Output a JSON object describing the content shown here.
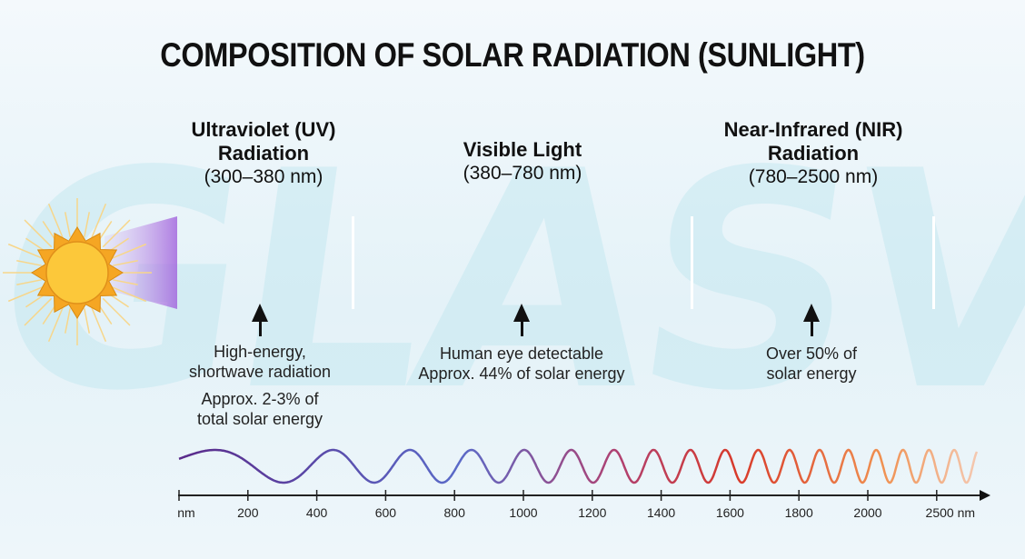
{
  "title": "COMPOSITION OF SOLAR RADIATION (SUNLIGHT)",
  "watermark": "GLASVUE",
  "sections": [
    {
      "name_line1": "Ultraviolet (UV)",
      "name_line2": "Radiation",
      "range": "(300–380 nm)",
      "note_lines": [
        "High-energy,",
        "shortwave radiation"
      ],
      "energy_lines": [
        "Approx. 2-3% of",
        "total solar energy"
      ]
    },
    {
      "name_line1": "Visible Light",
      "range": "(380–780 nm)",
      "note_lines": [
        "Human eye detectable"
      ],
      "energy_lines": [
        "Approx. 44% of solar energy"
      ]
    },
    {
      "name_line1": "Near-Infrared (NIR)",
      "name_line2": "Radiation",
      "range": "(780–2500 nm)",
      "note_lines": [
        "Over 50% of",
        "solar energy"
      ]
    }
  ],
  "axis": {
    "ticks": [
      "nm",
      "200",
      "400",
      "600",
      "800",
      "1000",
      "1200",
      "1400",
      "1600",
      "1800",
      "2000",
      "2500 nm"
    ]
  },
  "colors": {
    "uv": "#8a3fd0",
    "visible_blue": "#3a4fc8",
    "visible_green": "#3cb83c",
    "visible_yellow": "#f5e62a",
    "visible_red": "#e02020",
    "nir": "#c01818",
    "nir_orange": "#f08020",
    "sun": "#f7b21e"
  },
  "icons": {
    "sun": "sun-icon",
    "arrow": "arrow-up-icon"
  }
}
